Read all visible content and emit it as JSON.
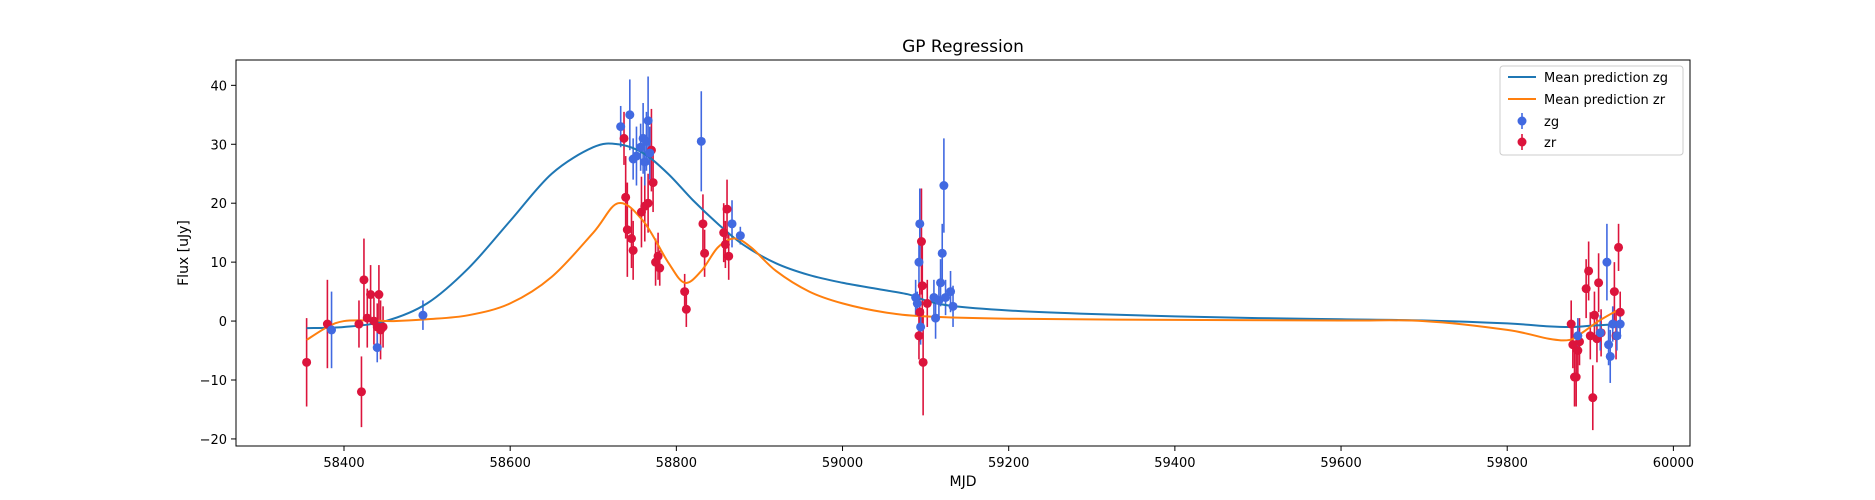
{
  "chart_data": {
    "type": "scatter",
    "title": "GP Regression",
    "xlabel": "MJD",
    "ylabel": "Flux [uJy]",
    "xlim": [
      58270,
      60020
    ],
    "ylim": [
      -21.2,
      44.3
    ],
    "xticks": [
      58400,
      58600,
      58800,
      59000,
      59200,
      59400,
      59600,
      59800,
      60000
    ],
    "xtick_labels": [
      "58400",
      "58600",
      "58800",
      "59000",
      "59200",
      "59400",
      "59600",
      "59800",
      "60000"
    ],
    "yticks": [
      -20,
      -10,
      0,
      10,
      20,
      30,
      40
    ],
    "ytick_labels": [
      "−20",
      "−10",
      "0",
      "10",
      "20",
      "30",
      "40"
    ],
    "grid": false,
    "legend_position": "top-right",
    "lines": [
      {
        "name": "Mean prediction zg",
        "color": "#1f77b4",
        "x": [
          58355,
          58400,
          58450,
          58500,
          58550,
          58600,
          58650,
          58700,
          58730,
          58760,
          58790,
          58820,
          58850,
          58880,
          58920,
          58960,
          59000,
          59040,
          59080,
          59100,
          59130,
          59200,
          59300,
          59400,
          59500,
          59600,
          59700,
          59800,
          59850,
          59880,
          59900,
          59935
        ],
        "y": [
          -1.2,
          -1.0,
          0.0,
          3.0,
          9.0,
          17.0,
          25.0,
          29.5,
          30.0,
          28.5,
          25.0,
          20.5,
          16.5,
          13.0,
          9.8,
          7.8,
          6.5,
          5.5,
          4.5,
          3.5,
          2.6,
          1.8,
          1.2,
          0.8,
          0.5,
          0.3,
          0.1,
          -0.4,
          -0.9,
          -1.0,
          -0.8,
          -0.5
        ]
      },
      {
        "name": "Mean prediction zr",
        "color": "#ff7f0e",
        "x": [
          58355,
          58380,
          58400,
          58430,
          58460,
          58500,
          58550,
          58600,
          58650,
          58700,
          58730,
          58760,
          58790,
          58810,
          58830,
          58850,
          58870,
          58890,
          58920,
          58960,
          59000,
          59050,
          59100,
          59200,
          59400,
          59600,
          59700,
          59800,
          59850,
          59875,
          59890,
          59910,
          59935
        ],
        "y": [
          -3.2,
          -1.0,
          0.0,
          0.1,
          0.0,
          0.3,
          1.0,
          3.0,
          7.5,
          15.0,
          20.0,
          17.0,
          10.0,
          6.5,
          8.5,
          12.5,
          14.0,
          12.5,
          8.5,
          5.0,
          3.0,
          1.5,
          0.8,
          0.4,
          0.2,
          0.1,
          0.0,
          -1.5,
          -3.0,
          -3.2,
          -2.0,
          0.0,
          2.0
        ]
      }
    ],
    "series": [
      {
        "name": "zg",
        "color": "#4169e1",
        "points": [
          {
            "x": 58385,
            "y": -1.5,
            "err": 6.5
          },
          {
            "x": 58440,
            "y": -4.5,
            "err": 2.5
          },
          {
            "x": 58495,
            "y": 1.0,
            "err": 2.5
          },
          {
            "x": 58733,
            "y": 33.0,
            "err": 3.5
          },
          {
            "x": 58744,
            "y": 35.0,
            "err": 6.0
          },
          {
            "x": 58748,
            "y": 27.5,
            "err": 3.5
          },
          {
            "x": 58752,
            "y": 28.0,
            "err": 5.0
          },
          {
            "x": 58757,
            "y": 29.5,
            "err": 4.0
          },
          {
            "x": 58760,
            "y": 31.0,
            "err": 6.0
          },
          {
            "x": 58762,
            "y": 27.0,
            "err": 4.0
          },
          {
            "x": 58764,
            "y": 30.5,
            "err": 5.0
          },
          {
            "x": 58766,
            "y": 34.0,
            "err": 7.5
          },
          {
            "x": 58768,
            "y": 28.5,
            "err": 4.5
          },
          {
            "x": 58830,
            "y": 30.5,
            "err": 8.5
          },
          {
            "x": 58867,
            "y": 16.5,
            "err": 4.0
          },
          {
            "x": 58877,
            "y": 14.5,
            "err": 1.5
          },
          {
            "x": 59088,
            "y": 4.0,
            "err": 3.0
          },
          {
            "x": 59090,
            "y": 3.0,
            "err": 2.0
          },
          {
            "x": 59092,
            "y": 10.0,
            "err": 4.0
          },
          {
            "x": 59093,
            "y": 16.5,
            "err": 6.0
          },
          {
            "x": 59094,
            "y": -1.0,
            "err": 3.0
          },
          {
            "x": 59110,
            "y": 4.0,
            "err": 3.0
          },
          {
            "x": 59112,
            "y": 0.5,
            "err": 3.5
          },
          {
            "x": 59116,
            "y": 3.5,
            "err": 3.0
          },
          {
            "x": 59118,
            "y": 6.5,
            "err": 4.0
          },
          {
            "x": 59120,
            "y": 11.5,
            "err": 5.0
          },
          {
            "x": 59122,
            "y": 23.0,
            "err": 8.0
          },
          {
            "x": 59124,
            "y": 4.0,
            "err": 3.0
          },
          {
            "x": 59130,
            "y": 5.0,
            "err": 3.5
          },
          {
            "x": 59133,
            "y": 2.5,
            "err": 3.5
          },
          {
            "x": 59885,
            "y": -2.5,
            "err": 3.0
          },
          {
            "x": 59912,
            "y": -2.0,
            "err": 3.0
          },
          {
            "x": 59920,
            "y": 10.0,
            "err": 6.5
          },
          {
            "x": 59922,
            "y": -4.0,
            "err": 3.5
          },
          {
            "x": 59924,
            "y": -6.0,
            "err": 4.5
          },
          {
            "x": 59927,
            "y": -0.5,
            "err": 3.0
          },
          {
            "x": 59932,
            "y": -2.5,
            "err": 2.5
          },
          {
            "x": 59936,
            "y": -0.5,
            "err": 2.5
          }
        ]
      },
      {
        "name": "zr",
        "color": "#dc143c",
        "points": [
          {
            "x": 58355,
            "y": -7.0,
            "err": 7.5
          },
          {
            "x": 58380,
            "y": -0.5,
            "err": 7.5
          },
          {
            "x": 58418,
            "y": -0.5,
            "err": 4.0
          },
          {
            "x": 58421,
            "y": -12.0,
            "err": 6.0
          },
          {
            "x": 58424,
            "y": 7.0,
            "err": 7.0
          },
          {
            "x": 58428,
            "y": 0.5,
            "err": 5.0
          },
          {
            "x": 58432,
            "y": 4.5,
            "err": 5.0
          },
          {
            "x": 58436,
            "y": 0.0,
            "err": 4.0
          },
          {
            "x": 58440,
            "y": -1.0,
            "err": 4.0
          },
          {
            "x": 58442,
            "y": 4.5,
            "err": 5.0
          },
          {
            "x": 58444,
            "y": -1.5,
            "err": 5.0
          },
          {
            "x": 58447,
            "y": -1.0,
            "err": 3.5
          },
          {
            "x": 58737,
            "y": 31.0,
            "err": 4.5
          },
          {
            "x": 58739,
            "y": 21.0,
            "err": 7.0
          },
          {
            "x": 58741,
            "y": 15.5,
            "err": 8.0
          },
          {
            "x": 58746,
            "y": 14.0,
            "err": 5.0
          },
          {
            "x": 58748,
            "y": 12.0,
            "err": 5.0
          },
          {
            "x": 58758,
            "y": 18.5,
            "err": 6.0
          },
          {
            "x": 58762,
            "y": 19.5,
            "err": 6.0
          },
          {
            "x": 58766,
            "y": 20.0,
            "err": 5.0
          },
          {
            "x": 58770,
            "y": 29.0,
            "err": 7.0
          },
          {
            "x": 58772,
            "y": 23.5,
            "err": 5.0
          },
          {
            "x": 58775,
            "y": 10.0,
            "err": 4.0
          },
          {
            "x": 58778,
            "y": 11.0,
            "err": 4.0
          },
          {
            "x": 58780,
            "y": 9.0,
            "err": 3.0
          },
          {
            "x": 58810,
            "y": 5.0,
            "err": 3.0
          },
          {
            "x": 58812,
            "y": 2.0,
            "err": 3.0
          },
          {
            "x": 58832,
            "y": 16.5,
            "err": 5.0
          },
          {
            "x": 58834,
            "y": 11.5,
            "err": 4.0
          },
          {
            "x": 58857,
            "y": 15.0,
            "err": 5.0
          },
          {
            "x": 58859,
            "y": 13.0,
            "err": 4.0
          },
          {
            "x": 58861,
            "y": 19.0,
            "err": 5.0
          },
          {
            "x": 58863,
            "y": 11.0,
            "err": 4.0
          },
          {
            "x": 59093,
            "y": 1.5,
            "err": 5.0
          },
          {
            "x": 59095,
            "y": 13.5,
            "err": 9.0
          },
          {
            "x": 59096,
            "y": 6.0,
            "err": 7.0
          },
          {
            "x": 59097,
            "y": -7.0,
            "err": 9.0
          },
          {
            "x": 59092,
            "y": -2.5,
            "err": 4.0
          },
          {
            "x": 59102,
            "y": 3.0,
            "err": 4.0
          },
          {
            "x": 59877,
            "y": -0.5,
            "err": 4.0
          },
          {
            "x": 59879,
            "y": -4.0,
            "err": 4.0
          },
          {
            "x": 59881,
            "y": -9.5,
            "err": 5.0
          },
          {
            "x": 59883,
            "y": -9.5,
            "err": 5.0
          },
          {
            "x": 59885,
            "y": -5.0,
            "err": 4.0
          },
          {
            "x": 59887,
            "y": -3.5,
            "err": 4.0
          },
          {
            "x": 59895,
            "y": 5.5,
            "err": 5.0
          },
          {
            "x": 59898,
            "y": 8.5,
            "err": 5.0
          },
          {
            "x": 59900,
            "y": -2.5,
            "err": 4.0
          },
          {
            "x": 59903,
            "y": -13.0,
            "err": 5.5
          },
          {
            "x": 59905,
            "y": 1.0,
            "err": 4.0
          },
          {
            "x": 59908,
            "y": -3.0,
            "err": 4.0
          },
          {
            "x": 59910,
            "y": 6.5,
            "err": 5.0
          },
          {
            "x": 59913,
            "y": -2.0,
            "err": 4.0
          },
          {
            "x": 59929,
            "y": 5.0,
            "err": 5.0
          },
          {
            "x": 59931,
            "y": -2.5,
            "err": 4.0
          },
          {
            "x": 59934,
            "y": 12.5,
            "err": 4.0
          },
          {
            "x": 59936,
            "y": 1.5,
            "err": 3.5
          }
        ]
      }
    ]
  }
}
